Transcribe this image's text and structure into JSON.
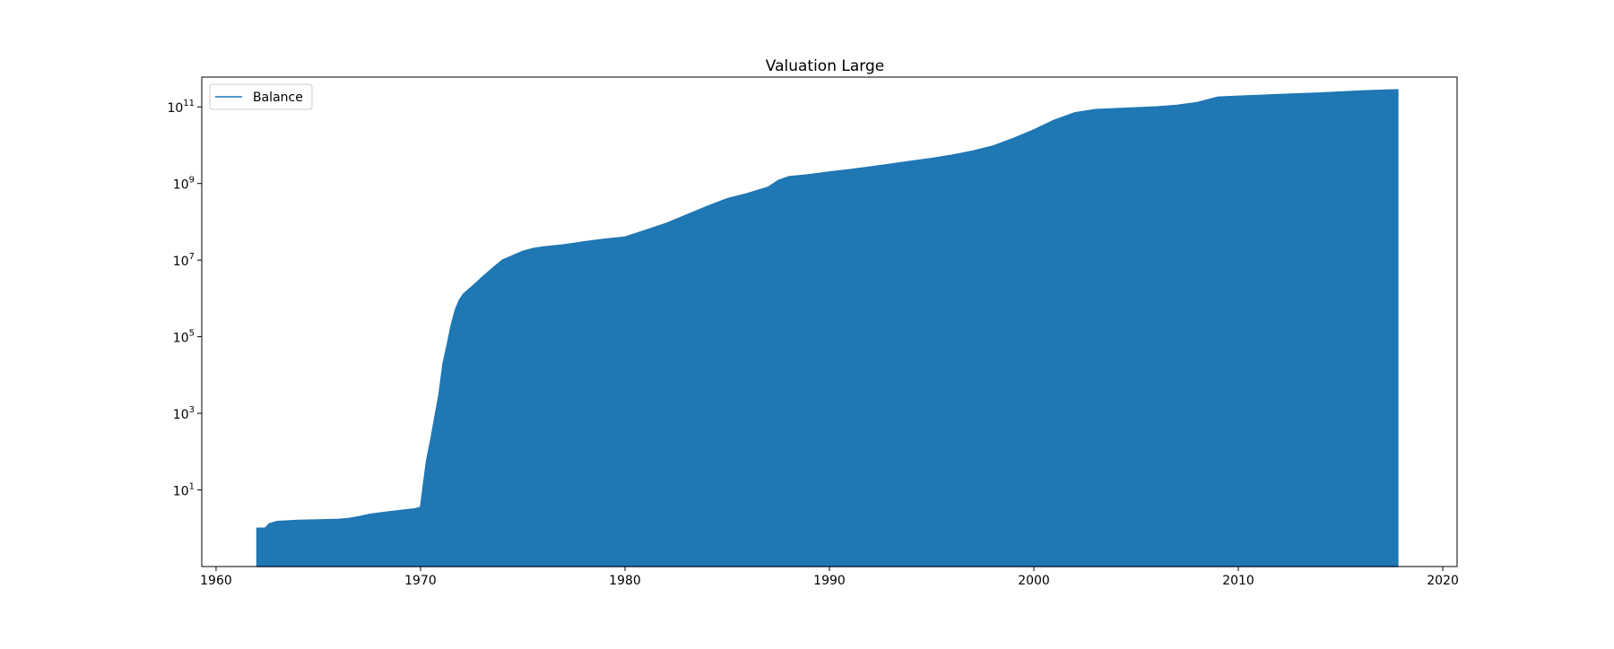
{
  "chart_data": {
    "type": "area",
    "title": "Valuation Large",
    "xlabel": "",
    "ylabel": "",
    "xlim": [
      1959.3,
      2020.7
    ],
    "ylim": [
      0.1,
      600000000000
    ],
    "yscale": "log",
    "grid": false,
    "legend": {
      "placement": "top-left",
      "entries": [
        "Balance"
      ]
    },
    "x_ticks": [
      1960,
      1970,
      1980,
      1990,
      2000,
      2010,
      2020
    ],
    "y_ticks": [
      {
        "value": 10,
        "base": "10",
        "exp": "1"
      },
      {
        "value": 1000,
        "base": "10",
        "exp": "3"
      },
      {
        "value": 100000,
        "base": "10",
        "exp": "5"
      },
      {
        "value": 10000000,
        "base": "10",
        "exp": "7"
      },
      {
        "value": 1000000000,
        "base": "10",
        "exp": "9"
      },
      {
        "value": 100000000000,
        "base": "10",
        "exp": "11"
      }
    ],
    "series": [
      {
        "name": "Balance",
        "color": "#1f77b4",
        "x": [
          1962.0,
          1962.4,
          1962.6,
          1963.0,
          1964.0,
          1965.0,
          1966.0,
          1966.5,
          1967.0,
          1967.5,
          1968.0,
          1968.5,
          1969.0,
          1969.7,
          1970.0,
          1970.15,
          1970.3,
          1970.5,
          1970.7,
          1970.9,
          1971.1,
          1971.3,
          1971.5,
          1971.7,
          1971.9,
          1972.1,
          1972.5,
          1973.0,
          1973.5,
          1974.0,
          1974.5,
          1975.0,
          1975.5,
          1976.0,
          1977.0,
          1978.0,
          1979.0,
          1980.0,
          1981.0,
          1982.0,
          1983.0,
          1984.0,
          1985.0,
          1986.0,
          1987.0,
          1987.5,
          1988.0,
          1989.0,
          1990.0,
          1991.0,
          1992.0,
          1993.0,
          1994.0,
          1995.0,
          1996.0,
          1997.0,
          1998.0,
          1999.0,
          2000.0,
          2001.0,
          2002.0,
          2003.0,
          2004.0,
          2005.0,
          2006.0,
          2007.0,
          2008.0,
          2009.0,
          2010.0,
          2012.0,
          2014.0,
          2016.0,
          2017.8
        ],
        "y": [
          1.0,
          1.0,
          1.3,
          1.5,
          1.6,
          1.65,
          1.7,
          1.8,
          2.0,
          2.3,
          2.5,
          2.7,
          2.9,
          3.2,
          3.5,
          15,
          60,
          200,
          800,
          3000,
          20000,
          60000,
          200000,
          500000,
          900000,
          1300000,
          2000000,
          3500000,
          6000000,
          10000000,
          13000000,
          17000000,
          20000000,
          22000000,
          25000000,
          30000000,
          35000000,
          40000000,
          60000000,
          90000000,
          150000000,
          250000000,
          400000000,
          550000000,
          800000000,
          1200000000,
          1500000000,
          1700000000,
          2000000000,
          2300000000,
          2700000000,
          3200000000,
          3800000000,
          4500000000,
          5500000000,
          7000000000,
          9500000000,
          15000000000,
          25000000000,
          45000000000,
          70000000000,
          85000000000,
          90000000000,
          95000000000,
          100000000000,
          110000000000,
          130000000000,
          180000000000,
          190000000000,
          210000000000,
          230000000000,
          260000000000,
          280000000000
        ]
      }
    ]
  }
}
